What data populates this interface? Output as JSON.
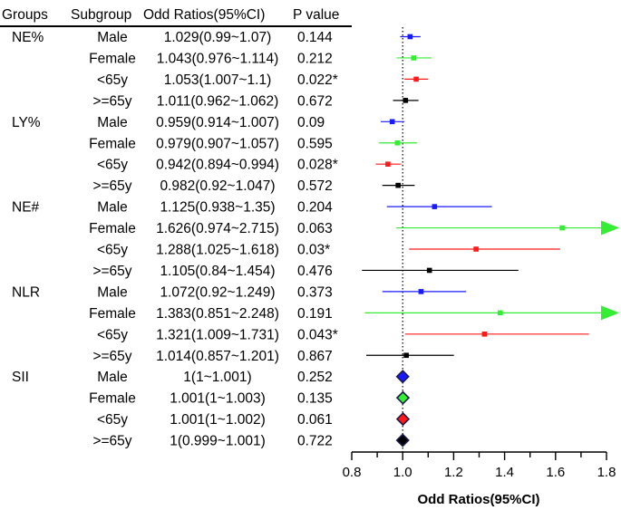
{
  "chart_data": {
    "type": "forest",
    "headers": {
      "group": "Groups",
      "subgroup": "Subgroup",
      "or": "Odd Ratios(95%CI)",
      "p": "P value"
    },
    "xlabel": "Odd Ratios(95%CI)",
    "xlim": [
      0.8,
      1.8
    ],
    "xticks": [
      "0.8",
      "1.0",
      "1.2",
      "1.4",
      "1.6",
      "1.8"
    ],
    "reference_line": 1.0,
    "colors": {
      "Male": "#1a1aff",
      "Female": "#33ee33",
      "<65y": "#ff1a1a",
      ">=65y": "#000000"
    },
    "rows": [
      {
        "group": "NE%",
        "subgroup": "Male",
        "or_text": "1.029(0.99~1.07)",
        "p": "0.144",
        "or": 1.029,
        "lo": 0.99,
        "hi": 1.07,
        "marker": "square"
      },
      {
        "group": "",
        "subgroup": "Female",
        "or_text": "1.043(0.976~1.114)",
        "p": "0.212",
        "or": 1.043,
        "lo": 0.976,
        "hi": 1.114,
        "marker": "square"
      },
      {
        "group": "",
        "subgroup": "<65y",
        "or_text": "1.053(1.007~1.1)",
        "p": "0.022*",
        "or": 1.053,
        "lo": 1.007,
        "hi": 1.1,
        "marker": "square"
      },
      {
        "group": "",
        "subgroup": ">=65y",
        "or_text": "1.011(0.962~1.062)",
        "p": "0.672",
        "or": 1.011,
        "lo": 0.962,
        "hi": 1.062,
        "marker": "square"
      },
      {
        "group": "LY%",
        "subgroup": "Male",
        "or_text": "0.959(0.914~1.007)",
        "p": "0.09",
        "or": 0.959,
        "lo": 0.914,
        "hi": 1.007,
        "marker": "square"
      },
      {
        "group": "",
        "subgroup": "Female",
        "or_text": "0.979(0.907~1.057)",
        "p": "0.595",
        "or": 0.979,
        "lo": 0.907,
        "hi": 1.057,
        "marker": "square"
      },
      {
        "group": "",
        "subgroup": "<65y",
        "or_text": "0.942(0.894~0.994)",
        "p": "0.028*",
        "or": 0.942,
        "lo": 0.894,
        "hi": 0.994,
        "marker": "square"
      },
      {
        "group": "",
        "subgroup": ">=65y",
        "or_text": "0.982(0.92~1.047)",
        "p": "0.572",
        "or": 0.982,
        "lo": 0.92,
        "hi": 1.047,
        "marker": "square"
      },
      {
        "group": "NE#",
        "subgroup": "Male",
        "or_text": "1.125(0.938~1.35)",
        "p": "0.204",
        "or": 1.125,
        "lo": 0.938,
        "hi": 1.35,
        "marker": "square"
      },
      {
        "group": "",
        "subgroup": "Female",
        "or_text": "1.626(0.974~2.715)",
        "p": "0.063",
        "or": 1.626,
        "lo": 0.974,
        "hi": 2.715,
        "marker": "square"
      },
      {
        "group": "",
        "subgroup": "<65y",
        "or_text": "1.288(1.025~1.618)",
        "p": "0.03*",
        "or": 1.288,
        "lo": 1.025,
        "hi": 1.618,
        "marker": "square"
      },
      {
        "group": "",
        "subgroup": ">=65y",
        "or_text": "1.105(0.84~1.454)",
        "p": "0.476",
        "or": 1.105,
        "lo": 0.84,
        "hi": 1.454,
        "marker": "square"
      },
      {
        "group": "NLR",
        "subgroup": "Male",
        "or_text": "1.072(0.92~1.249)",
        "p": "0.373",
        "or": 1.072,
        "lo": 0.92,
        "hi": 1.249,
        "marker": "square"
      },
      {
        "group": "",
        "subgroup": "Female",
        "or_text": "1.383(0.851~2.248)",
        "p": "0.191",
        "or": 1.383,
        "lo": 0.851,
        "hi": 2.248,
        "marker": "square"
      },
      {
        "group": "",
        "subgroup": "<65y",
        "or_text": "1.321(1.009~1.731)",
        "p": "0.043*",
        "or": 1.321,
        "lo": 1.009,
        "hi": 1.731,
        "marker": "square"
      },
      {
        "group": "",
        "subgroup": ">=65y",
        "or_text": "1.014(0.857~1.201)",
        "p": "0.867",
        "or": 1.014,
        "lo": 0.857,
        "hi": 1.201,
        "marker": "square"
      },
      {
        "group": "SII",
        "subgroup": "Male",
        "or_text": "1(1~1.001)",
        "p": "0.252",
        "or": 1.0,
        "lo": 1.0,
        "hi": 1.001,
        "marker": "diamond"
      },
      {
        "group": "",
        "subgroup": "Female",
        "or_text": "1.001(1~1.003)",
        "p": "0.135",
        "or": 1.001,
        "lo": 1.0,
        "hi": 1.003,
        "marker": "diamond"
      },
      {
        "group": "",
        "subgroup": "<65y",
        "or_text": "1.001(1~1.002)",
        "p": "0.061",
        "or": 1.001,
        "lo": 1.0,
        "hi": 1.002,
        "marker": "diamond"
      },
      {
        "group": "",
        "subgroup": ">=65y",
        "or_text": "1(0.999~1.001)",
        "p": "0.722",
        "or": 1.0,
        "lo": 0.999,
        "hi": 1.001,
        "marker": "diamond"
      }
    ]
  }
}
